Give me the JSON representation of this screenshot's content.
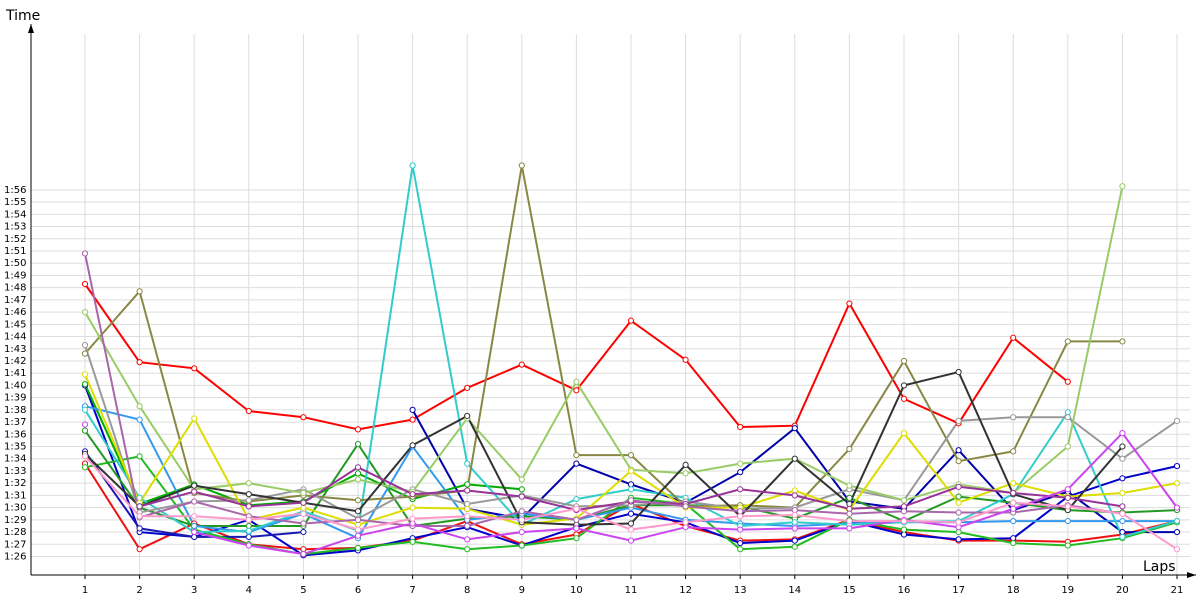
{
  "chart_data": {
    "type": "line",
    "ylabel": "Time",
    "xlabel": "Laps",
    "x": [
      1,
      2,
      3,
      4,
      5,
      6,
      7,
      8,
      9,
      10,
      11,
      12,
      13,
      14,
      15,
      16,
      17,
      18,
      19,
      20,
      21
    ],
    "x_tick_labels": [
      "1",
      "2",
      "3",
      "4",
      "5",
      "6",
      "7",
      "8",
      "9",
      "10",
      "11",
      "12",
      "13",
      "14",
      "15",
      "16",
      "17",
      "18",
      "19",
      "20",
      "21"
    ],
    "ylim": [
      85,
      117
    ],
    "y_ticks": [
      86,
      87,
      88,
      89,
      90,
      91,
      92,
      93,
      94,
      95,
      96,
      97,
      98,
      99,
      100,
      101,
      102,
      103,
      104,
      105,
      106,
      107,
      108,
      109,
      110,
      111,
      112,
      113,
      114,
      115,
      116
    ],
    "y_tick_labels": [
      "1:26",
      "1:27",
      "1:28",
      "1:29",
      "1:30",
      "1:31",
      "1:32",
      "1:33",
      "1:34",
      "1:35",
      "1:36",
      "1:37",
      "1:38",
      "1:39",
      "1:40",
      "1:41",
      "1:42",
      "1:43",
      "1:44",
      "1:45",
      "1:46",
      "1:47",
      "1:48",
      "1:49",
      "1:50",
      "1:51",
      "1:52",
      "1:53",
      "1:54",
      "1:55",
      "1:56"
    ],
    "grid": true,
    "series": [
      {
        "color": "#ff0000",
        "values": [
          108.3,
          101.9,
          101.4,
          97.9,
          97.4,
          96.4,
          97.2,
          99.8,
          101.7,
          99.6,
          105.3,
          102.1,
          96.6,
          96.7,
          106.7,
          98.9,
          96.9,
          103.9,
          100.3,
          null,
          null
        ]
      },
      {
        "color": "#ee1111",
        "values": [
          93.6,
          86.6,
          88.7,
          87.0,
          86.6,
          86.7,
          87.3,
          88.9,
          87.0,
          87.8,
          90.3,
          88.5,
          87.3,
          87.4,
          89.0,
          88.0,
          87.3,
          87.3,
          87.2,
          87.8,
          88.9
        ]
      },
      {
        "color": "#0000cc",
        "values": [
          100.0,
          88.0,
          87.6,
          89.0,
          86.1,
          86.5,
          87.5,
          88.4,
          86.9,
          88.4,
          89.5,
          88.8,
          87.1,
          87.3,
          88.9,
          87.8,
          87.4,
          87.5,
          90.9,
          92.4,
          93.4
        ]
      },
      {
        "color": "#1a1ab3",
        "values": [
          94.6,
          88.3,
          87.6,
          87.6,
          88.0,
          null,
          null,
          null,
          null,
          null,
          null,
          null,
          null,
          null,
          null,
          null,
          null,
          null,
          null,
          null,
          null
        ]
      },
      {
        "color": "#0000aa",
        "values": [
          null,
          null,
          null,
          null,
          null,
          null,
          98.0,
          89.9,
          89.1,
          93.6,
          91.9,
          90.4,
          92.9,
          96.5,
          90.5,
          89.9,
          94.7,
          89.8,
          91.3,
          88.0,
          88.0
        ]
      },
      {
        "color": "#00aa00",
        "values": [
          100.1,
          90.3,
          91.9,
          90.2,
          90.5,
          92.8,
          90.7,
          91.9,
          91.5,
          null,
          null,
          null,
          null,
          null,
          null,
          null,
          null,
          null,
          null,
          null,
          null
        ]
      },
      {
        "color": "#22bb22",
        "values": [
          93.3,
          94.2,
          88.2,
          87.0,
          86.2,
          86.7,
          87.2,
          86.6,
          86.9,
          87.5,
          90.8,
          90.3,
          86.6,
          86.8,
          89.0,
          88.2,
          88.0,
          87.1,
          86.9,
          87.5,
          88.8
        ]
      },
      {
        "color": "#229922",
        "values": [
          96.3,
          90.0,
          88.5,
          88.5,
          88.5,
          95.2,
          88.5,
          89.1,
          89.3,
          89.0,
          90.2,
          90.2,
          90.1,
          89.1,
          90.8,
          88.9,
          90.9,
          90.4,
          89.8,
          89.6,
          89.8
        ]
      },
      {
        "color": "#3399ee",
        "values": [
          98.3,
          97.2,
          88.5,
          88.0,
          89.5,
          87.5,
          95.0,
          89.0,
          89.5,
          89.0,
          90.0,
          89.0,
          88.7,
          88.5,
          88.7,
          88.8,
          88.8,
          88.9,
          88.9,
          88.9,
          88.9
        ]
      },
      {
        "color": "#33cccc",
        "values": [
          98.0,
          90.8,
          88.0,
          88.1,
          89.7,
          88.1,
          118.0,
          93.6,
          88.6,
          90.7,
          91.5,
          90.8,
          88.5,
          88.8,
          88.6,
          88.8,
          88.9,
          91.1,
          97.8,
          87.6,
          88.9
        ]
      },
      {
        "color": "#888844",
        "values": [
          102.6,
          107.7,
          91.2,
          90.5,
          91.0,
          90.6,
          90.9,
          91.4,
          118.0,
          94.3,
          94.3,
          90.1,
          90.2,
          90.0,
          94.8,
          102.0,
          93.8,
          94.6,
          103.6,
          103.6,
          null
        ]
      },
      {
        "color": "#999999",
        "values": [
          103.3,
          89.6,
          90.5,
          90.6,
          91.5,
          89.1,
          91.5,
          90.3,
          91.0,
          90.1,
          90.2,
          90.5,
          89.9,
          90.0,
          91.5,
          90.6,
          97.1,
          97.4,
          97.4,
          94.0,
          97.1
        ]
      },
      {
        "color": "#aaaaaa",
        "values": [
          null,
          null,
          null,
          null,
          91.3,
          null,
          null,
          null,
          null,
          null,
          null,
          null,
          null,
          null,
          null,
          null,
          null,
          null,
          null,
          null,
          null
        ]
      },
      {
        "color": "#99cc66",
        "values": [
          106.0,
          98.3,
          91.5,
          92.0,
          91.2,
          92.3,
          91.3,
          97.3,
          92.3,
          100.3,
          93.1,
          92.8,
          93.6,
          94.0,
          91.8,
          90.6,
          91.9,
          91.2,
          95.0,
          116.3,
          null
        ]
      },
      {
        "color": "#dddd00",
        "values": [
          100.9,
          90.4,
          97.3,
          89.0,
          90.0,
          88.6,
          90.0,
          89.9,
          88.6,
          89.1,
          93.0,
          90.0,
          90.0,
          91.4,
          89.8,
          96.1,
          90.4,
          92.0,
          90.9,
          91.2,
          92.0
        ]
      },
      {
        "color": "#333333",
        "values": [
          94.4,
          90.1,
          91.8,
          91.1,
          90.4,
          89.7,
          95.1,
          97.5,
          88.8,
          88.6,
          88.7,
          93.5,
          89.3,
          94.0,
          90.3,
          100.0,
          101.1,
          91.1,
          89.8,
          95.0,
          null
        ]
      },
      {
        "color": "#993399",
        "values": [
          null,
          90.1,
          91.3,
          90.1,
          90.4,
          93.3,
          91.1,
          91.4,
          90.9,
          89.8,
          90.5,
          90.3,
          91.5,
          91.0,
          89.9,
          90.1,
          91.7,
          91.2,
          90.8,
          90.1,
          null
        ]
      },
      {
        "color": "#aa66aa",
        "values": [
          110.8,
          89.2,
          90.5,
          89.3,
          88.7,
          89.0,
          88.5,
          88.5,
          89.7,
          89.0,
          90.6,
          90.1,
          89.7,
          89.8,
          89.5,
          89.7,
          89.6,
          89.6,
          90.2,
          89.5,
          null
        ]
      },
      {
        "color": "#cc44ee",
        "values": [
          96.8,
          null,
          88.0,
          86.9,
          86.2,
          87.7,
          88.7,
          87.4,
          88.0,
          88.3,
          87.3,
          88.4,
          88.2,
          88.3,
          88.3,
          89.0,
          88.4,
          89.9,
          91.5,
          96.1,
          90.0
        ]
      },
      {
        "color": "#ff99cc",
        "values": [
          94.2,
          89.3,
          89.3,
          89.0,
          89.5,
          88.2,
          89.1,
          89.3,
          89.0,
          89.9,
          88.2,
          88.8,
          89.3,
          89.4,
          88.9,
          88.9,
          88.8,
          90.4,
          90.1,
          89.5,
          86.6
        ]
      }
    ]
  }
}
